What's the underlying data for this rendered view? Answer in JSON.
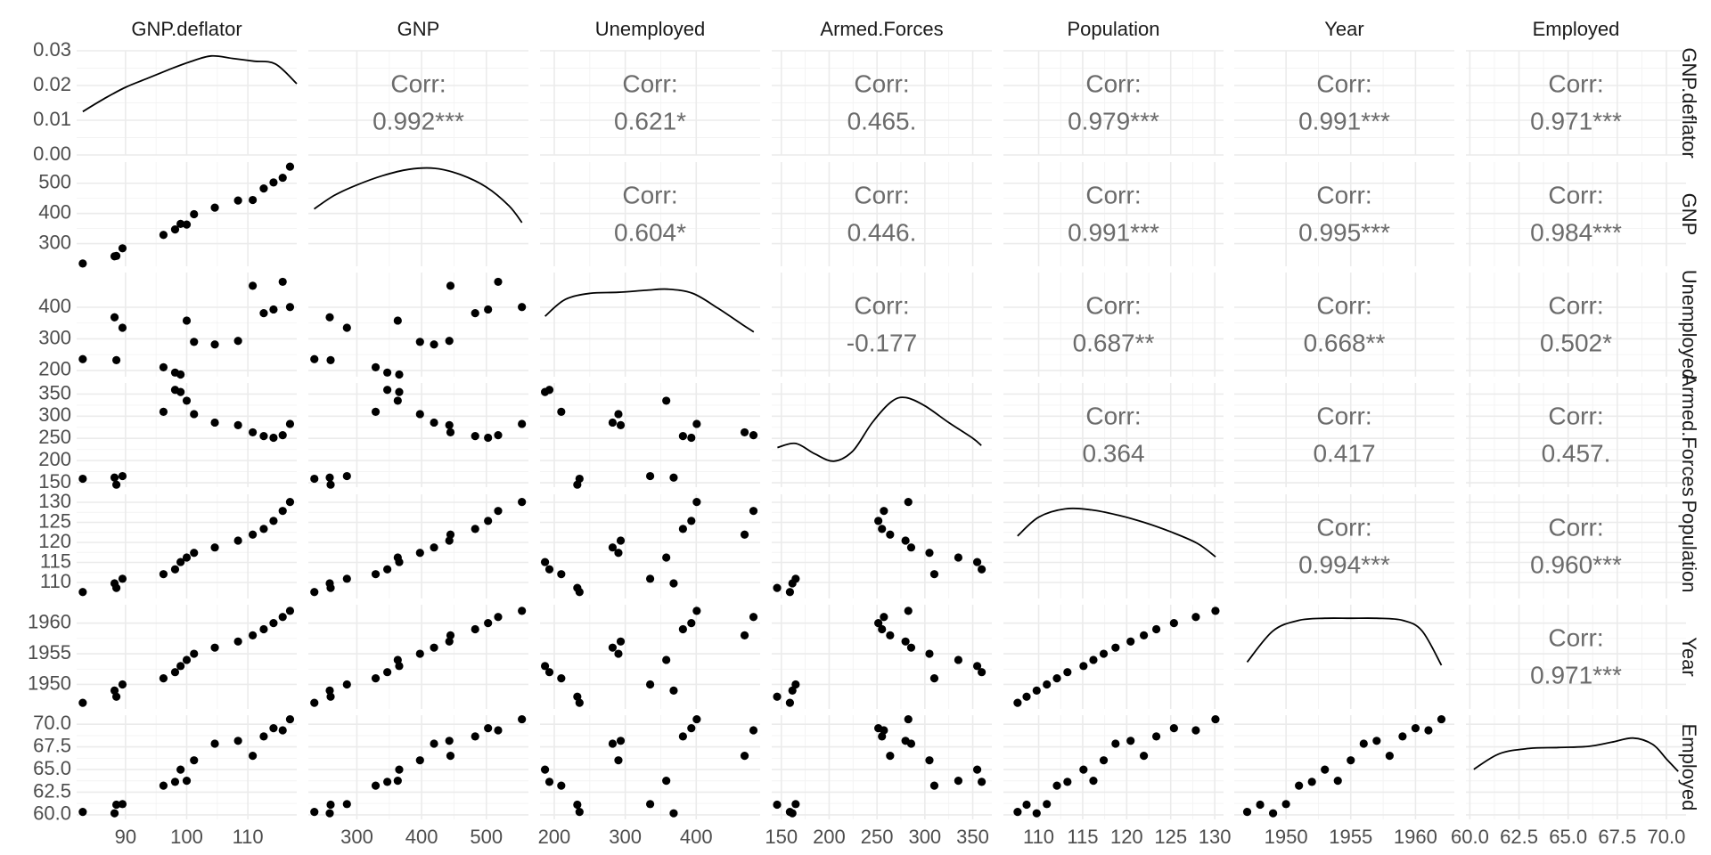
{
  "chart_data": {
    "type": "scatter",
    "variables": [
      "GNP.deflator",
      "GNP",
      "Unemployed",
      "Armed.Forces",
      "Population",
      "Year",
      "Employed"
    ],
    "corr_label": "Corr:",
    "correlations": [
      {
        "row": "GNP",
        "col": "GNP.deflator",
        "text": "0.992***"
      },
      {
        "row": "Unemployed",
        "col": "GNP.deflator",
        "text": "0.621*"
      },
      {
        "row": "Armed.Forces",
        "col": "GNP.deflator",
        "text": "0.465."
      },
      {
        "row": "Population",
        "col": "GNP.deflator",
        "text": "0.979***"
      },
      {
        "row": "Year",
        "col": "GNP.deflator",
        "text": "0.991***"
      },
      {
        "row": "Employed",
        "col": "GNP.deflator",
        "text": "0.971***"
      },
      {
        "row": "Unemployed",
        "col": "GNP",
        "text": "0.604*"
      },
      {
        "row": "Armed.Forces",
        "col": "GNP",
        "text": "0.446."
      },
      {
        "row": "Population",
        "col": "GNP",
        "text": "0.991***"
      },
      {
        "row": "Year",
        "col": "GNP",
        "text": "0.995***"
      },
      {
        "row": "Employed",
        "col": "GNP",
        "text": "0.984***"
      },
      {
        "row": "Armed.Forces",
        "col": "Unemployed",
        "text": "-0.177"
      },
      {
        "row": "Population",
        "col": "Unemployed",
        "text": "0.687**"
      },
      {
        "row": "Year",
        "col": "Unemployed",
        "text": "0.668**"
      },
      {
        "row": "Employed",
        "col": "Unemployed",
        "text": "0.502*"
      },
      {
        "row": "Population",
        "col": "Armed.Forces",
        "text": "0.364"
      },
      {
        "row": "Year",
        "col": "Armed.Forces",
        "text": "0.417"
      },
      {
        "row": "Employed",
        "col": "Armed.Forces",
        "text": "0.457."
      },
      {
        "row": "Year",
        "col": "Population",
        "text": "0.994***"
      },
      {
        "row": "Employed",
        "col": "Population",
        "text": "0.960***"
      },
      {
        "row": "Employed",
        "col": "Year",
        "text": "0.971***"
      }
    ],
    "x_axes": [
      {
        "variable": "GNP.deflator",
        "range": [
          82,
          118
        ],
        "ticks": [
          90,
          100,
          110
        ],
        "tick_labels": [
          "90",
          "100",
          "110"
        ]
      },
      {
        "variable": "GNP",
        "range": [
          225,
          565
        ],
        "ticks": [
          300,
          400,
          500
        ],
        "tick_labels": [
          "300",
          "400",
          "500"
        ]
      },
      {
        "variable": "Unemployed",
        "range": [
          180,
          490
        ],
        "ticks": [
          200,
          300,
          400
        ],
        "tick_labels": [
          "200",
          "300",
          "400"
        ]
      },
      {
        "variable": "Armed.Forces",
        "range": [
          140,
          370
        ],
        "ticks": [
          150,
          200,
          250,
          300,
          350
        ],
        "tick_labels": [
          "150",
          "200",
          "250",
          "300",
          "350"
        ]
      },
      {
        "variable": "Population",
        "range": [
          106,
          131
        ],
        "ticks": [
          110,
          115,
          120,
          125,
          130
        ],
        "tick_labels": [
          "110",
          "115",
          "120",
          "125",
          "130"
        ]
      },
      {
        "variable": "Year",
        "range": [
          1946,
          1963
        ],
        "ticks": [
          1950,
          1955,
          1960
        ],
        "tick_labels": [
          "1950",
          "1955",
          "1960"
        ]
      },
      {
        "variable": "Employed",
        "range": [
          59.8,
          71.0
        ],
        "ticks": [
          60,
          62.5,
          65,
          67.5,
          70
        ],
        "tick_labels": [
          "60.0",
          "62.5",
          "65.0",
          "67.5",
          "70.0"
        ]
      }
    ],
    "y_axes": [
      {
        "variable": "GNP.deflator",
        "range": [
          0,
          0.03
        ],
        "ticks": [
          0,
          0.01,
          0.02,
          0.03
        ],
        "tick_labels": [
          "0.00",
          "0.01",
          "0.02",
          "0.03"
        ]
      },
      {
        "variable": "GNP",
        "range": [
          225,
          570
        ],
        "ticks": [
          300,
          400,
          500
        ],
        "tick_labels": [
          "300",
          "400",
          "500"
        ]
      },
      {
        "variable": "Unemployed",
        "range": [
          180,
          510
        ],
        "ticks": [
          200,
          300,
          400
        ],
        "tick_labels": [
          "200",
          "300",
          "400"
        ]
      },
      {
        "variable": "Armed.Forces",
        "range": [
          140,
          375
        ],
        "ticks": [
          150,
          200,
          250,
          300,
          350
        ],
        "tick_labels": [
          "150",
          "200",
          "250",
          "300",
          "350"
        ]
      },
      {
        "variable": "Population",
        "range": [
          106,
          132
        ],
        "ticks": [
          110,
          115,
          120,
          125,
          130
        ],
        "tick_labels": [
          "110",
          "115",
          "120",
          "125",
          "130"
        ]
      },
      {
        "variable": "Year",
        "range": [
          1946,
          1963
        ],
        "ticks": [
          1950,
          1955,
          1960
        ],
        "tick_labels": [
          "1950",
          "1955",
          "1960"
        ]
      },
      {
        "variable": "Employed",
        "range": [
          59.5,
          71.0
        ],
        "ticks": [
          60,
          62.5,
          65,
          67.5,
          70
        ],
        "tick_labels": [
          "60.0",
          "62.5",
          "65.0",
          "67.5",
          "70.0"
        ]
      }
    ],
    "observations": {
      "GNP.deflator": [
        83.0,
        88.5,
        88.2,
        89.5,
        96.2,
        98.1,
        99.0,
        100.0,
        101.2,
        104.6,
        108.4,
        110.8,
        112.6,
        114.2,
        115.7,
        116.9
      ],
      "GNP": [
        234.289,
        259.426,
        258.054,
        284.599,
        328.975,
        346.999,
        365.385,
        363.112,
        397.469,
        419.18,
        442.769,
        444.546,
        482.704,
        502.601,
        518.173,
        554.894
      ],
      "Unemployed": [
        235.6,
        232.5,
        368.2,
        335.1,
        209.9,
        193.2,
        187.0,
        357.8,
        290.4,
        282.2,
        293.6,
        468.1,
        381.3,
        393.1,
        480.6,
        400.7
      ],
      "Armed.Forces": [
        159.0,
        145.6,
        161.6,
        165.0,
        309.9,
        359.4,
        354.7,
        335.0,
        304.8,
        285.7,
        279.8,
        263.7,
        255.2,
        251.4,
        257.2,
        282.7
      ],
      "Population": [
        107.608,
        108.632,
        109.773,
        110.929,
        112.075,
        113.27,
        115.094,
        116.219,
        117.388,
        118.734,
        120.445,
        121.95,
        123.366,
        125.368,
        127.852,
        130.081
      ],
      "Year": [
        1947,
        1948,
        1949,
        1950,
        1951,
        1952,
        1953,
        1954,
        1955,
        1956,
        1957,
        1958,
        1959,
        1960,
        1961,
        1962
      ],
      "Employed": [
        60.323,
        61.122,
        60.171,
        61.187,
        63.221,
        63.639,
        64.989,
        63.761,
        66.019,
        67.857,
        68.169,
        66.513,
        68.655,
        69.564,
        69.331,
        70.551
      ]
    },
    "density_curves": [
      {
        "variable": "GNP.deflator",
        "range": [
          0,
          0.03
        ],
        "points": [
          [
            83.0,
            0.0125
          ],
          [
            86.5,
            0.0162
          ],
          [
            90.0,
            0.0195
          ],
          [
            93.5,
            0.022
          ],
          [
            97.0,
            0.0245
          ],
          [
            100.5,
            0.0268
          ],
          [
            104.0,
            0.0285
          ],
          [
            107.5,
            0.0278
          ],
          [
            111.0,
            0.027
          ],
          [
            114.5,
            0.0262
          ],
          [
            118.0,
            0.0205
          ]
        ]
      },
      {
        "variable": "GNP",
        "range": [
          0,
          1
        ],
        "points": [
          [
            234,
            0.55
          ],
          [
            265,
            0.68
          ],
          [
            300,
            0.78
          ],
          [
            340,
            0.87
          ],
          [
            380,
            0.93
          ],
          [
            420,
            0.94
          ],
          [
            460,
            0.88
          ],
          [
            500,
            0.76
          ],
          [
            535,
            0.58
          ],
          [
            555,
            0.42
          ]
        ]
      },
      {
        "variable": "Unemployed",
        "range": [
          0,
          1
        ],
        "points": [
          [
            187,
            0.58
          ],
          [
            215,
            0.74
          ],
          [
            250,
            0.8
          ],
          [
            290,
            0.81
          ],
          [
            330,
            0.83
          ],
          [
            360,
            0.84
          ],
          [
            395,
            0.8
          ],
          [
            430,
            0.66
          ],
          [
            465,
            0.5
          ],
          [
            481,
            0.43
          ]
        ]
      },
      {
        "variable": "Armed.Forces",
        "range": [
          0,
          1
        ],
        "points": [
          [
            146,
            0.38
          ],
          [
            165,
            0.42
          ],
          [
            185,
            0.32
          ],
          [
            205,
            0.25
          ],
          [
            225,
            0.35
          ],
          [
            245,
            0.62
          ],
          [
            265,
            0.82
          ],
          [
            280,
            0.86
          ],
          [
            300,
            0.78
          ],
          [
            325,
            0.62
          ],
          [
            350,
            0.47
          ],
          [
            359,
            0.4
          ]
        ]
      },
      {
        "variable": "Population",
        "range": [
          0,
          1
        ],
        "points": [
          [
            107.6,
            0.6
          ],
          [
            110,
            0.78
          ],
          [
            113,
            0.86
          ],
          [
            116,
            0.85
          ],
          [
            119,
            0.8
          ],
          [
            122,
            0.73
          ],
          [
            125,
            0.64
          ],
          [
            128,
            0.53
          ],
          [
            130.1,
            0.4
          ]
        ]
      },
      {
        "variable": "Year",
        "range": [
          0,
          1
        ],
        "points": [
          [
            1947,
            0.45
          ],
          [
            1949,
            0.75
          ],
          [
            1951,
            0.85
          ],
          [
            1953,
            0.87
          ],
          [
            1955,
            0.87
          ],
          [
            1957,
            0.87
          ],
          [
            1959,
            0.85
          ],
          [
            1960.5,
            0.75
          ],
          [
            1962,
            0.42
          ]
        ]
      },
      {
        "variable": "Employed",
        "range": [
          0,
          1
        ],
        "points": [
          [
            60.2,
            0.48
          ],
          [
            61.5,
            0.63
          ],
          [
            63.0,
            0.68
          ],
          [
            64.5,
            0.69
          ],
          [
            66.0,
            0.7
          ],
          [
            67.2,
            0.74
          ],
          [
            68.3,
            0.78
          ],
          [
            69.3,
            0.72
          ],
          [
            70.0,
            0.58
          ],
          [
            70.6,
            0.46
          ]
        ]
      }
    ]
  }
}
